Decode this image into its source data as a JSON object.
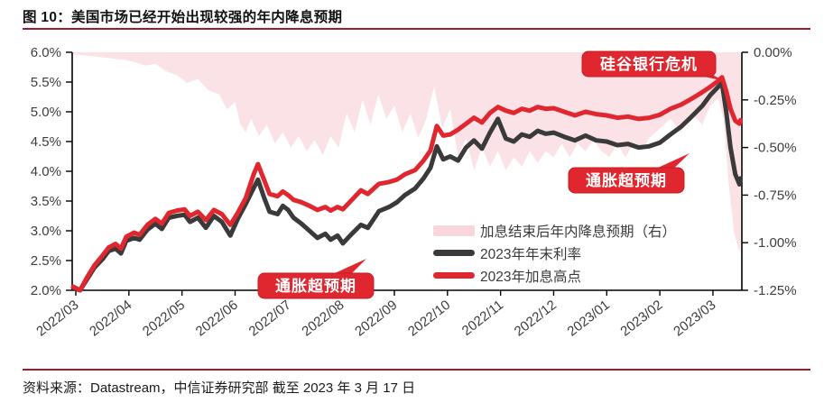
{
  "figure": {
    "title": "图 10：美国市场已经开始出现较强的年内降息预期",
    "source": "资料来源：Datastream，中信证券研究部 截至 2023 年 3 月 17 日"
  },
  "colors": {
    "accent_rule": "#9B1C2E",
    "peak_line": "#E0262E",
    "yearend_line": "#3A3A3A",
    "cut_area": "#FAE2E6",
    "annotation_bg": "#E0262E",
    "annotation_border": "#C21D26",
    "annotation_text": "#FFFFFF",
    "axis": "#000000",
    "tick_text": "#3D3D3D"
  },
  "annotations": [
    {
      "label": "硅谷银行危机"
    },
    {
      "label": "通胀超预期"
    },
    {
      "label": "通胀超预期"
    }
  ],
  "chart_data": {
    "type": "line",
    "title": "",
    "grid": false,
    "legend_position": "inside-bottom-right",
    "x_unit": "months since 2022/03",
    "x_ticks": [
      "2022/03",
      "2022/04",
      "2022/05",
      "2022/06",
      "2022/07",
      "2022/08",
      "2022/09",
      "2022/10",
      "2022/11",
      "2022/12",
      "2023/01",
      "2023/02",
      "2023/03"
    ],
    "left_axis": {
      "min": 2.0,
      "max": 6.0,
      "ticks": [
        "6.0%",
        "5.5%",
        "5.0%",
        "4.5%",
        "4.0%",
        "3.5%",
        "3.0%",
        "2.5%",
        "2.0%"
      ]
    },
    "right_axis": {
      "min": -1.25,
      "max": 0.0,
      "ticks": [
        "0.00%",
        "-0.25%",
        "-0.50%",
        "-0.75%",
        "-1.00%",
        "-1.25%"
      ]
    },
    "legend": [
      {
        "label": "加息结束后年内降息预期（右）",
        "type": "area",
        "color": "#FAE2E6"
      },
      {
        "label": "2023年年末利率",
        "type": "line",
        "color": "#3A3A3A"
      },
      {
        "label": "2023年加息高点",
        "type": "line",
        "color": "#E0262E"
      }
    ],
    "line_x": [
      -0.05,
      0.08,
      0.2,
      0.35,
      0.5,
      0.62,
      0.75,
      0.85,
      0.95,
      1.1,
      1.2,
      1.35,
      1.5,
      1.62,
      1.75,
      1.9,
      2.05,
      2.15,
      2.3,
      2.45,
      2.6,
      2.75,
      2.91,
      3.05,
      3.2,
      3.35,
      3.43,
      3.55,
      3.65,
      3.8,
      3.9,
      4.0,
      4.1,
      4.25,
      4.4,
      4.55,
      4.7,
      4.8,
      4.93,
      5.03,
      5.2,
      5.37,
      5.5,
      5.71,
      5.9,
      6.05,
      6.2,
      6.39,
      6.55,
      6.68,
      6.8,
      6.92,
      7.05,
      7.2,
      7.35,
      7.5,
      7.65,
      7.8,
      7.95,
      8.1,
      8.25,
      8.4,
      8.55,
      8.7,
      8.85,
      9.0,
      9.2,
      9.4,
      9.6,
      9.8,
      10.0,
      10.2,
      10.4,
      10.6,
      10.8,
      11.0,
      11.2,
      11.4,
      11.6,
      11.8,
      11.95,
      12.1,
      12.17,
      12.25,
      12.33,
      12.42,
      12.5,
      12.56
    ],
    "series": [
      {
        "name": "2023年加息高点",
        "axis": "left",
        "color": "#E0262E",
        "values": [
          2.06,
          2.0,
          2.2,
          2.42,
          2.58,
          2.72,
          2.78,
          2.7,
          2.9,
          2.97,
          2.93,
          3.1,
          3.2,
          3.12,
          3.3,
          3.34,
          3.36,
          3.25,
          3.32,
          3.18,
          3.35,
          3.28,
          3.1,
          3.3,
          3.55,
          3.95,
          4.12,
          3.85,
          3.62,
          3.58,
          3.66,
          3.6,
          3.52,
          3.48,
          3.42,
          3.35,
          3.4,
          3.34,
          3.4,
          3.36,
          3.52,
          3.68,
          3.62,
          3.79,
          3.82,
          3.86,
          3.95,
          4.02,
          4.18,
          4.35,
          4.76,
          4.6,
          4.62,
          4.7,
          4.8,
          4.9,
          4.82,
          4.98,
          5.08,
          5.02,
          4.98,
          5.05,
          5.02,
          5.08,
          5.05,
          5.06,
          5.0,
          4.94,
          5.0,
          4.96,
          4.94,
          4.9,
          4.92,
          4.88,
          4.9,
          4.95,
          5.05,
          5.12,
          5.22,
          5.33,
          5.42,
          5.52,
          5.58,
          5.35,
          5.05,
          4.85,
          4.8,
          4.86
        ]
      },
      {
        "name": "2023年年末利率",
        "axis": "left",
        "color": "#3A3A3A",
        "values": [
          2.04,
          2.0,
          2.17,
          2.38,
          2.52,
          2.66,
          2.7,
          2.62,
          2.83,
          2.88,
          2.85,
          3.02,
          3.12,
          3.03,
          3.22,
          3.25,
          3.27,
          3.15,
          3.22,
          3.05,
          3.25,
          3.15,
          2.92,
          3.2,
          3.45,
          3.72,
          3.86,
          3.55,
          3.32,
          3.28,
          3.42,
          3.35,
          3.22,
          3.12,
          3.0,
          2.88,
          2.95,
          2.85,
          2.92,
          2.79,
          2.95,
          3.1,
          3.05,
          3.33,
          3.4,
          3.48,
          3.6,
          3.71,
          3.88,
          4.06,
          4.42,
          4.2,
          4.25,
          4.18,
          4.4,
          4.52,
          4.38,
          4.65,
          4.88,
          4.55,
          4.5,
          4.62,
          4.58,
          4.68,
          4.63,
          4.65,
          4.58,
          4.52,
          4.6,
          4.52,
          4.5,
          4.44,
          4.46,
          4.4,
          4.42,
          4.48,
          4.62,
          4.75,
          4.92,
          5.1,
          5.28,
          5.42,
          5.48,
          5.0,
          4.4,
          3.95,
          3.78,
          3.88
        ]
      }
    ],
    "area_series": {
      "name": "加息结束后年内降息预期（右）",
      "axis": "right",
      "color": "#FAE2E6",
      "x": [
        -0.05,
        0.3,
        0.6,
        0.9,
        1.1,
        1.3,
        1.5,
        1.7,
        1.9,
        2.1,
        2.3,
        2.5,
        2.7,
        2.85,
        3.0,
        3.1,
        3.2,
        3.3,
        3.45,
        3.6,
        3.75,
        3.9,
        4.05,
        4.2,
        4.35,
        4.5,
        4.65,
        4.8,
        4.95,
        5.1,
        5.25,
        5.4,
        5.55,
        5.7,
        5.85,
        6.0,
        6.15,
        6.3,
        6.45,
        6.6,
        6.75,
        6.9,
        7.05,
        7.2,
        7.35,
        7.5,
        7.65,
        7.8,
        7.95,
        8.1,
        8.25,
        8.4,
        8.55,
        8.7,
        8.85,
        9.0,
        9.15,
        9.3,
        9.45,
        9.6,
        9.75,
        9.9,
        10.05,
        10.2,
        10.35,
        10.5,
        10.65,
        10.8,
        11.0,
        11.2,
        11.4,
        11.6,
        11.8,
        11.95,
        12.1,
        12.2,
        12.3,
        12.4,
        12.5,
        12.56
      ],
      "values": [
        -0.01,
        -0.02,
        -0.03,
        -0.04,
        -0.05,
        -0.07,
        -0.06,
        -0.1,
        -0.12,
        -0.16,
        -0.14,
        -0.2,
        -0.22,
        -0.3,
        -0.26,
        -0.38,
        -0.42,
        -0.35,
        -0.44,
        -0.38,
        -0.48,
        -0.42,
        -0.5,
        -0.44,
        -0.52,
        -0.46,
        -0.54,
        -0.44,
        -0.5,
        -0.32,
        -0.42,
        -0.25,
        -0.38,
        -0.22,
        -0.35,
        -0.28,
        -0.42,
        -0.32,
        -0.45,
        -0.35,
        -0.18,
        -0.4,
        -0.3,
        -0.55,
        -0.45,
        -0.62,
        -0.5,
        -0.6,
        -0.52,
        -0.62,
        -0.55,
        -0.6,
        -0.52,
        -0.58,
        -0.52,
        -0.55,
        -0.48,
        -0.55,
        -0.48,
        -0.52,
        -0.46,
        -0.52,
        -0.55,
        -0.48,
        -0.55,
        -0.48,
        -0.52,
        -0.45,
        -0.4,
        -0.35,
        -0.42,
        -0.32,
        -0.38,
        -0.28,
        -0.24,
        -0.35,
        -0.7,
        -0.95,
        -1.05,
        -1.0
      ]
    }
  }
}
